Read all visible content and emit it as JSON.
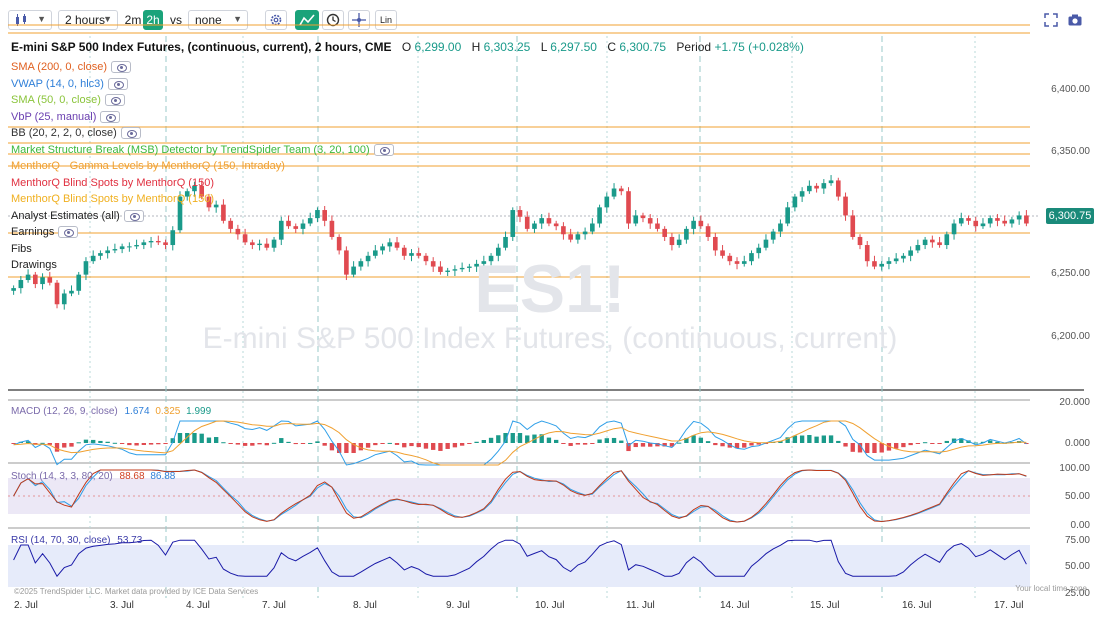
{
  "toolbar": {
    "chart_type_icon": "candles-icon",
    "interval_select": "2 hours",
    "quick_2m": "2m",
    "quick_2h": "2h",
    "vs_label": "vs",
    "compare_select": "none",
    "settings_icon": "gear-icon",
    "indicator_icon": "trend-icon",
    "clock_icon": "clock-icon",
    "crosshair_icon": "crosshair-icon",
    "lin_button": "Lin",
    "fullscreen_icon": "expand-icon",
    "camera_icon": "camera-icon"
  },
  "header": {
    "title": "E-mini S&P 500 Index Futures, (continuous, current), 2 hours, CME",
    "o_label": "O",
    "o_value": "6,299.00",
    "h_label": "H",
    "h_value": "6,303.25",
    "l_label": "L",
    "l_value": "6,297.50",
    "c_label": "C",
    "c_value": "6,300.75",
    "period_label": "Period",
    "period_value": "+1.75 (+0.028%)"
  },
  "legend": [
    {
      "text": "SMA (200, 0, close)",
      "color": "#e06020",
      "eye": true
    },
    {
      "text": "VWAP (14, 0, hlc3)",
      "color": "#2f7fd8",
      "eye": true
    },
    {
      "text": "SMA (50, 0, close)",
      "color": "#8ac43a",
      "eye": true
    },
    {
      "text": "VbP (25, manual)",
      "color": "#6a3fb0",
      "eye": true
    },
    {
      "text": "BB (20, 2, 2, 0, close)",
      "color": "#333333",
      "eye": true
    },
    {
      "text": "Market Structure Break (MSB) Detector by TrendSpider Team (3, 20, 100)",
      "color": "#3cb83c",
      "eye": true
    },
    {
      "text": "MenthorQ - Gamma Levels by MenthorQ (150, Intraday)",
      "color": "#f0a030",
      "eye": false
    },
    {
      "text": "MenthorQ Blind Spots by MenthorQ (150)",
      "color": "#e03040",
      "eye": false
    },
    {
      "text": "MenthorQ Blind Spots by MenthorQ (150)",
      "color": "#f0b020",
      "eye": false
    },
    {
      "text": "Analyst Estimates (all)",
      "color": "#222222",
      "eye": true
    },
    {
      "text": "Earnings",
      "color": "#222222",
      "eye": true
    },
    {
      "text": "Fibs",
      "color": "#222222",
      "eye": false
    },
    {
      "text": "Drawings",
      "color": "#222222",
      "eye": false
    }
  ],
  "watermark": {
    "symbol": "ES1!",
    "name": "E-mini S&P 500 Index Futures, (continuous, current)"
  },
  "price_axis": {
    "ticks": [
      "6,400.00",
      "6,350.00",
      "6,300.00",
      "6,250.00",
      "6,200.00"
    ],
    "current_price": "6,300.75"
  },
  "macd": {
    "label": "MACD (12, 26, 9, close)",
    "v1": "1.674",
    "v2": "0.325",
    "v3": "1.999",
    "ticks": [
      "20.000",
      "0.000"
    ]
  },
  "stoch": {
    "label": "Stoch (14, 3, 3, 80, 20)",
    "v1": "88.68",
    "v2": "86.88",
    "ticks": [
      "100.00",
      "50.00",
      "0.00"
    ]
  },
  "rsi": {
    "label": "RSI (14, 70, 30, close)",
    "value": "53.73",
    "ticks": [
      "75.00",
      "50.00",
      "25.00"
    ]
  },
  "x_axis": {
    "labels": [
      "2. Jul",
      "3. Jul",
      "4. Jul",
      "7. Jul",
      "8. Jul",
      "9. Jul",
      "10. Jul",
      "11. Jul",
      "14. Jul",
      "15. Jul",
      "16. Jul",
      "17. Jul"
    ]
  },
  "footer": {
    "copyright": "©2025 TrendSpider LLC. Market data provided by ICE Data Services",
    "timezone": "Your local time zone"
  },
  "colors": {
    "up": "#1a9a8a",
    "down": "#e04a50",
    "accent": "#1aa37a",
    "level_line": "#f0a030"
  },
  "chart_data": {
    "type": "candlestick",
    "price_range": [
      6180,
      6420
    ],
    "closes": [
      6252,
      6258,
      6262,
      6255,
      6260,
      6256,
      6240,
      6248,
      6250,
      6262,
      6272,
      6276,
      6278,
      6280,
      6281,
      6283,
      6283,
      6284,
      6286,
      6287,
      6286,
      6284,
      6295,
      6320,
      6324,
      6328,
      6320,
      6312,
      6314,
      6302,
      6296,
      6292,
      6286,
      6284,
      6285,
      6282,
      6288,
      6302,
      6298,
      6296,
      6300,
      6304,
      6310,
      6302,
      6290,
      6280,
      6262,
      6268,
      6272,
      6276,
      6280,
      6283,
      6286,
      6282,
      6276,
      6278,
      6276,
      6272,
      6268,
      6264,
      6265,
      6266,
      6267,
      6268,
      6270,
      6272,
      6276,
      6282,
      6290,
      6310,
      6305,
      6296,
      6300,
      6304,
      6300,
      6298,
      6292,
      6288,
      6292,
      6294,
      6300,
      6312,
      6320,
      6326,
      6324,
      6300,
      6306,
      6304,
      6300,
      6296,
      6290,
      6284,
      6288,
      6296,
      6302,
      6298,
      6290,
      6280,
      6276,
      6272,
      6270,
      6272,
      6278,
      6282,
      6288,
      6294,
      6300,
      6312,
      6320,
      6324,
      6328,
      6326,
      6330,
      6332,
      6320,
      6306,
      6290,
      6284,
      6272,
      6268,
      6270,
      6272,
      6274,
      6276,
      6280,
      6284,
      6288,
      6286,
      6284,
      6292,
      6300,
      6304,
      6302,
      6298,
      6300,
      6304,
      6302,
      6300,
      6303,
      6306,
      6300
    ],
    "sma": [
      6254,
      6257,
      6259,
      6260,
      6261,
      6262,
      6264,
      6266,
      6268,
      6271,
      6274,
      6277,
      6280,
      6283,
      6286,
      6290,
      6294,
      6297,
      6299,
      6300,
      6299,
      6297,
      6294,
      6291,
      6288,
      6285,
      6283,
      6280,
      6278,
      6276,
      6274,
      6272,
      6270,
      6269,
      6268,
      6268,
      6269,
      6271,
      6274,
      6277,
      6280,
      6283,
      6285,
      6287,
      6288,
      6289,
      6290,
      6291,
      6292,
      6293,
      6293,
      6294,
      6295,
      6296,
      6297,
      6298,
      6300,
      6302,
      6304,
      6306,
      6306,
      6306,
      6305,
      6303,
      6300,
      6297,
      6294,
      6291,
      6288,
      6285,
      6283,
      6281,
      6279,
      6278,
      6278,
      6279,
      6281,
      6283,
      6285,
      6288,
      6291,
      6294,
      6297,
      6300,
      6302,
      6303,
      6303,
      6302,
      6300,
      6297,
      6293,
      6289,
      6285,
      6281,
      6278,
      6276,
      6274,
      6273,
      6273,
      6274,
      6276,
      6279,
      6282,
      6285,
      6288,
      6291,
      6294,
      6296,
      6297,
      6297,
      6296,
      6294,
      6292,
      6290,
      6288,
      6287,
      6286,
      6286,
      6286,
      6287,
      6289,
      6291,
      6292,
      6293,
      6294,
      6295,
      6296,
      6296,
      6296,
      6297,
      6298,
      6299,
      6300,
      6300,
      6300,
      6300,
      6300,
      6300,
      6301,
      6301,
      6301
    ]
  }
}
